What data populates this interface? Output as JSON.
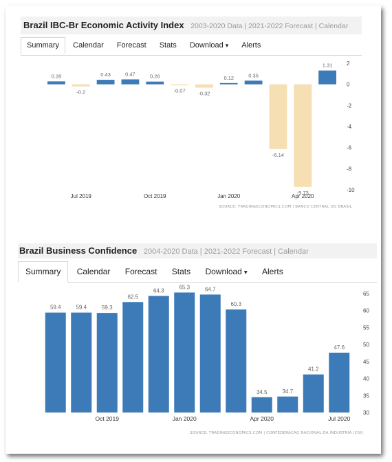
{
  "chart_data": [
    {
      "type": "bar",
      "title": "Brazil IBC-Br Economic Activity Index",
      "subtitle": "2003-2020 Data | 2021-2022 Forecast | Calendar",
      "tabs": [
        "Summary",
        "Calendar",
        "Forecast",
        "Stats",
        "Download",
        "Alerts"
      ],
      "active_tab": "Summary",
      "categories": [
        "Jun 2019",
        "Jul 2019",
        "Aug 2019",
        "Sep 2019",
        "Oct 2019",
        "Nov 2019",
        "Dec 2019",
        "Jan 2020",
        "Feb 2020",
        "Mar 2020",
        "Apr 2020",
        "May 2020"
      ],
      "values": [
        0.28,
        -0.2,
        0.43,
        0.47,
        0.26,
        -0.07,
        -0.32,
        0.12,
        0.35,
        -6.14,
        -9.73,
        1.31
      ],
      "data_labels": [
        "0.28",
        "-0.2",
        "0.43",
        "0.47",
        "0.26",
        "-0.07",
        "-0.32",
        "0.12",
        "0.35",
        "-6.14",
        "-9.73",
        "1.31"
      ],
      "x_tick_labels": [
        {
          "label": "Jul 2019",
          "index": 1
        },
        {
          "label": "Oct 2019",
          "index": 4
        },
        {
          "label": "Jan 2020",
          "index": 7
        },
        {
          "label": "Apr 2020",
          "index": 10
        }
      ],
      "y_ticks": [
        2,
        0,
        -2,
        -4,
        -6,
        -8,
        -10
      ],
      "ylim": [
        -10,
        2
      ],
      "y_axis_side": "right",
      "source": "SOURCE: TRADINGECONOMICS.COM | BANCO CENTRAL DO BRASIL",
      "colors": {
        "positive": "#3d7ab8",
        "negative": "#f5dfb3",
        "label": "#666666",
        "baseline": "#bbbbbb"
      }
    },
    {
      "type": "bar",
      "title": "Brazil Business Confidence",
      "subtitle": "2004-2020 Data | 2021-2022 Forecast | Calendar",
      "tabs": [
        "Summary",
        "Calendar",
        "Forecast",
        "Stats",
        "Download",
        "Alerts"
      ],
      "active_tab": "Summary",
      "categories": [
        "Aug 2019",
        "Sep 2019",
        "Oct 2019",
        "Nov 2019",
        "Dec 2019",
        "Jan 2020",
        "Feb 2020",
        "Mar 2020",
        "Apr 2020",
        "May 2020",
        "Jun 2020",
        "Jul 2020"
      ],
      "values": [
        59.4,
        59.4,
        59.3,
        62.5,
        64.3,
        65.3,
        64.7,
        60.3,
        34.5,
        34.7,
        41.2,
        47.6
      ],
      "data_labels": [
        "59.4",
        "59.4",
        "59.3",
        "62.5",
        "64.3",
        "65.3",
        "64.7",
        "60.3",
        "34.5",
        "34.7",
        "41.2",
        "47.6"
      ],
      "x_tick_labels": [
        {
          "label": "Oct 2019",
          "index": 2
        },
        {
          "label": "Jan 2020",
          "index": 5
        },
        {
          "label": "Apr 2020",
          "index": 8
        },
        {
          "label": "Jul 2020",
          "index": 11
        }
      ],
      "y_ticks": [
        65,
        60,
        55,
        50,
        45,
        40,
        35,
        30
      ],
      "ylim": [
        30,
        66
      ],
      "y_axis_side": "right",
      "source": "SOURCE: TRADINGECONOMICS.COM | CONFEDERACAO NACIONAL DA INDUSTRIA (CNI)",
      "colors": {
        "bar": "#3d7ab8",
        "label": "#666666"
      }
    }
  ]
}
